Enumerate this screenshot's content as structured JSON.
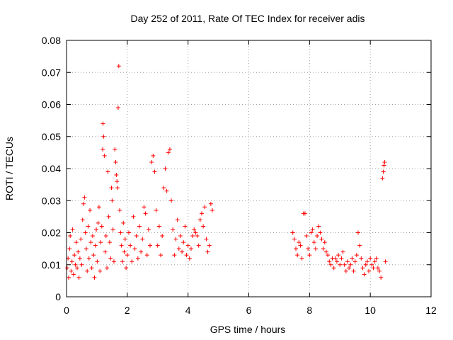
{
  "chart_data": {
    "type": "scatter",
    "title": "Day 252 of 2011, Rate Of TEC Index for receiver adis",
    "xlabel": "GPS time / hours",
    "ylabel": "ROTI / TECUs",
    "xlim": [
      0,
      12
    ],
    "ylim": [
      0,
      0.08
    ],
    "xticks": [
      0,
      2,
      4,
      6,
      8,
      10,
      12
    ],
    "yticks": [
      0,
      0.01,
      0.02,
      0.03,
      0.04,
      0.05,
      0.06,
      0.07,
      0.08
    ],
    "xtick_labels": [
      "0",
      "2",
      "4",
      "6",
      "8",
      "10",
      "12"
    ],
    "ytick_labels": [
      "0",
      "0.01",
      "0.02",
      "0.03",
      "0.04",
      "0.05",
      "0.06",
      "0.07",
      "0.08"
    ],
    "grid": true,
    "marker": "plus",
    "color": "#ff0000",
    "series": [
      {
        "points": [
          [
            0.02,
            0.009
          ],
          [
            0.05,
            0.012
          ],
          [
            0.07,
            0.006
          ],
          [
            0.1,
            0.015
          ],
          [
            0.12,
            0.019
          ],
          [
            0.15,
            0.008
          ],
          [
            0.18,
            0.011
          ],
          [
            0.2,
            0.021
          ],
          [
            0.23,
            0.007
          ],
          [
            0.26,
            0.013
          ],
          [
            0.29,
            0.01
          ],
          [
            0.32,
            0.017
          ],
          [
            0.35,
            0.009
          ],
          [
            0.38,
            0.014
          ],
          [
            0.41,
            0.006
          ],
          [
            0.44,
            0.012
          ],
          [
            0.47,
            0.018
          ],
          [
            0.5,
            0.01
          ],
          [
            0.53,
            0.024
          ],
          [
            0.56,
            0.029
          ],
          [
            0.59,
            0.031
          ],
          [
            0.62,
            0.02
          ],
          [
            0.65,
            0.015
          ],
          [
            0.68,
            0.008
          ],
          [
            0.71,
            0.022
          ],
          [
            0.74,
            0.012
          ],
          [
            0.77,
            0.027
          ],
          [
            0.8,
            0.017
          ],
          [
            0.83,
            0.009
          ],
          [
            0.86,
            0.019
          ],
          [
            0.89,
            0.013
          ],
          [
            0.92,
            0.006
          ],
          [
            0.95,
            0.016
          ],
          [
            0.98,
            0.021
          ],
          [
            1.01,
            0.011
          ],
          [
            1.04,
            0.023
          ],
          [
            1.07,
            0.028
          ],
          [
            1.1,
            0.008
          ],
          [
            1.13,
            0.017
          ],
          [
            1.16,
            0.022
          ],
          [
            1.19,
            0.046
          ],
          [
            1.2,
            0.054
          ],
          [
            1.22,
            0.05
          ],
          [
            1.25,
            0.044
          ],
          [
            1.27,
            0.014
          ],
          [
            1.3,
            0.019
          ],
          [
            1.33,
            0.009
          ],
          [
            1.36,
            0.039
          ],
          [
            1.39,
            0.025
          ],
          [
            1.42,
            0.017
          ],
          [
            1.45,
            0.012
          ],
          [
            1.48,
            0.034
          ],
          [
            1.5,
            0.03
          ],
          [
            1.53,
            0.021
          ],
          [
            1.56,
            0.011
          ],
          [
            1.59,
            0.046
          ],
          [
            1.62,
            0.042
          ],
          [
            1.64,
            0.038
          ],
          [
            1.66,
            0.036
          ],
          [
            1.68,
            0.034
          ],
          [
            1.7,
            0.059
          ],
          [
            1.72,
            0.072
          ],
          [
            1.75,
            0.027
          ],
          [
            1.78,
            0.02
          ],
          [
            1.81,
            0.016
          ],
          [
            1.84,
            0.011
          ],
          [
            1.87,
            0.023
          ],
          [
            1.9,
            0.014
          ],
          [
            1.93,
            0.018
          ],
          [
            1.96,
            0.009
          ],
          [
            2.0,
            0.013
          ],
          [
            2.05,
            0.02
          ],
          [
            2.1,
            0.016
          ],
          [
            2.15,
            0.011
          ],
          [
            2.2,
            0.025
          ],
          [
            2.25,
            0.015
          ],
          [
            2.3,
            0.019
          ],
          [
            2.35,
            0.012
          ],
          [
            2.4,
            0.022
          ],
          [
            2.45,
            0.014
          ],
          [
            2.5,
            0.018
          ],
          [
            2.55,
            0.028
          ],
          [
            2.6,
            0.026
          ],
          [
            2.65,
            0.013
          ],
          [
            2.7,
            0.021
          ],
          [
            2.75,
            0.016
          ],
          [
            2.8,
            0.042
          ],
          [
            2.85,
            0.044
          ],
          [
            2.9,
            0.039
          ],
          [
            2.95,
            0.027
          ],
          [
            3.0,
            0.016
          ],
          [
            3.05,
            0.022
          ],
          [
            3.1,
            0.013
          ],
          [
            3.15,
            0.019
          ],
          [
            3.2,
            0.034
          ],
          [
            3.25,
            0.04
          ],
          [
            3.3,
            0.033
          ],
          [
            3.35,
            0.045
          ],
          [
            3.4,
            0.046
          ],
          [
            3.45,
            0.03
          ],
          [
            3.5,
            0.021
          ],
          [
            3.55,
            0.013
          ],
          [
            3.6,
            0.018
          ],
          [
            3.65,
            0.024
          ],
          [
            3.7,
            0.015
          ],
          [
            3.75,
            0.019
          ],
          [
            3.8,
            0.014
          ],
          [
            3.85,
            0.017
          ],
          [
            3.9,
            0.022
          ],
          [
            3.95,
            0.013
          ],
          [
            4.0,
            0.016
          ],
          [
            4.05,
            0.012
          ],
          [
            4.1,
            0.015
          ],
          [
            4.15,
            0.019
          ],
          [
            4.2,
            0.021
          ],
          [
            4.25,
            0.02
          ],
          [
            4.3,
            0.019
          ],
          [
            4.35,
            0.016
          ],
          [
            4.4,
            0.024
          ],
          [
            4.45,
            0.026
          ],
          [
            4.5,
            0.022
          ],
          [
            4.55,
            0.028
          ],
          [
            4.6,
            0.018
          ],
          [
            4.65,
            0.014
          ],
          [
            4.7,
            0.016
          ],
          [
            4.75,
            0.029
          ],
          [
            4.8,
            0.027
          ],
          [
            7.45,
            0.02
          ],
          [
            7.5,
            0.018
          ],
          [
            7.55,
            0.015
          ],
          [
            7.6,
            0.013
          ],
          [
            7.65,
            0.017
          ],
          [
            7.7,
            0.016
          ],
          [
            7.75,
            0.012
          ],
          [
            7.8,
            0.026
          ],
          [
            7.85,
            0.026
          ],
          [
            7.9,
            0.019
          ],
          [
            7.95,
            0.015
          ],
          [
            8.0,
            0.013
          ],
          [
            8.05,
            0.02
          ],
          [
            8.1,
            0.021
          ],
          [
            8.15,
            0.017
          ],
          [
            8.2,
            0.015
          ],
          [
            8.25,
            0.019
          ],
          [
            8.3,
            0.022
          ],
          [
            8.35,
            0.02
          ],
          [
            8.4,
            0.018
          ],
          [
            8.45,
            0.015
          ],
          [
            8.5,
            0.017
          ],
          [
            8.55,
            0.014
          ],
          [
            8.6,
            0.013
          ],
          [
            8.65,
            0.011
          ],
          [
            8.7,
            0.01
          ],
          [
            8.75,
            0.012
          ],
          [
            8.8,
            0.009
          ],
          [
            8.85,
            0.012
          ],
          [
            8.9,
            0.011
          ],
          [
            8.95,
            0.013
          ],
          [
            9.0,
            0.01
          ],
          [
            9.05,
            0.012
          ],
          [
            9.1,
            0.014
          ],
          [
            9.15,
            0.01
          ],
          [
            9.2,
            0.008
          ],
          [
            9.25,
            0.011
          ],
          [
            9.3,
            0.009
          ],
          [
            9.35,
            0.01
          ],
          [
            9.4,
            0.012
          ],
          [
            9.45,
            0.008
          ],
          [
            9.5,
            0.011
          ],
          [
            9.55,
            0.013
          ],
          [
            9.6,
            0.02
          ],
          [
            9.65,
            0.016
          ],
          [
            9.7,
            0.012
          ],
          [
            9.75,
            0.009
          ],
          [
            9.8,
            0.007
          ],
          [
            9.85,
            0.01
          ],
          [
            9.9,
            0.011
          ],
          [
            9.95,
            0.008
          ],
          [
            10.0,
            0.012
          ],
          [
            10.05,
            0.01
          ],
          [
            10.1,
            0.009
          ],
          [
            10.15,
            0.011
          ],
          [
            10.2,
            0.012
          ],
          [
            10.25,
            0.009
          ],
          [
            10.3,
            0.008
          ],
          [
            10.35,
            0.006
          ],
          [
            10.4,
            0.037
          ],
          [
            10.43,
            0.039
          ],
          [
            10.45,
            0.041
          ],
          [
            10.47,
            0.042
          ],
          [
            10.5,
            0.011
          ]
        ]
      }
    ]
  }
}
